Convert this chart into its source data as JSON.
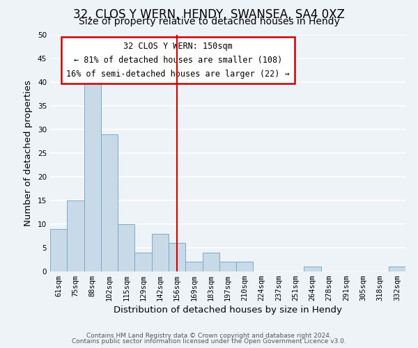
{
  "title": "32, CLOS Y WERN, HENDY, SWANSEA, SA4 0XZ",
  "subtitle": "Size of property relative to detached houses in Hendy",
  "xlabel": "Distribution of detached houses by size in Hendy",
  "ylabel": "Number of detached properties",
  "bar_color": "#c8d9e8",
  "bar_edge_color": "#7aaac8",
  "bins": [
    "61sqm",
    "75sqm",
    "88sqm",
    "102sqm",
    "115sqm",
    "129sqm",
    "142sqm",
    "156sqm",
    "169sqm",
    "183sqm",
    "197sqm",
    "210sqm",
    "224sqm",
    "237sqm",
    "251sqm",
    "264sqm",
    "278sqm",
    "291sqm",
    "305sqm",
    "318sqm",
    "332sqm"
  ],
  "counts": [
    9,
    15,
    40,
    29,
    10,
    4,
    8,
    6,
    2,
    4,
    2,
    2,
    0,
    0,
    0,
    1,
    0,
    0,
    0,
    0,
    1
  ],
  "vline_pos": 7,
  "annotation_line1": "32 CLOS Y WERN: 150sqm",
  "annotation_line2": "← 81% of detached houses are smaller (108)",
  "annotation_line3": "16% of semi-detached houses are larger (22) →",
  "ylim": [
    0,
    50
  ],
  "yticks": [
    0,
    5,
    10,
    15,
    20,
    25,
    30,
    35,
    40,
    45,
    50
  ],
  "footer1": "Contains HM Land Registry data © Crown copyright and database right 2024.",
  "footer2": "Contains public sector information licensed under the Open Government Licence v3.0.",
  "background_color": "#eef3f8",
  "grid_color": "#ffffff",
  "title_fontsize": 12,
  "subtitle_fontsize": 10,
  "tick_fontsize": 7.5,
  "axis_label_fontsize": 9.5,
  "footer_fontsize": 6.5
}
